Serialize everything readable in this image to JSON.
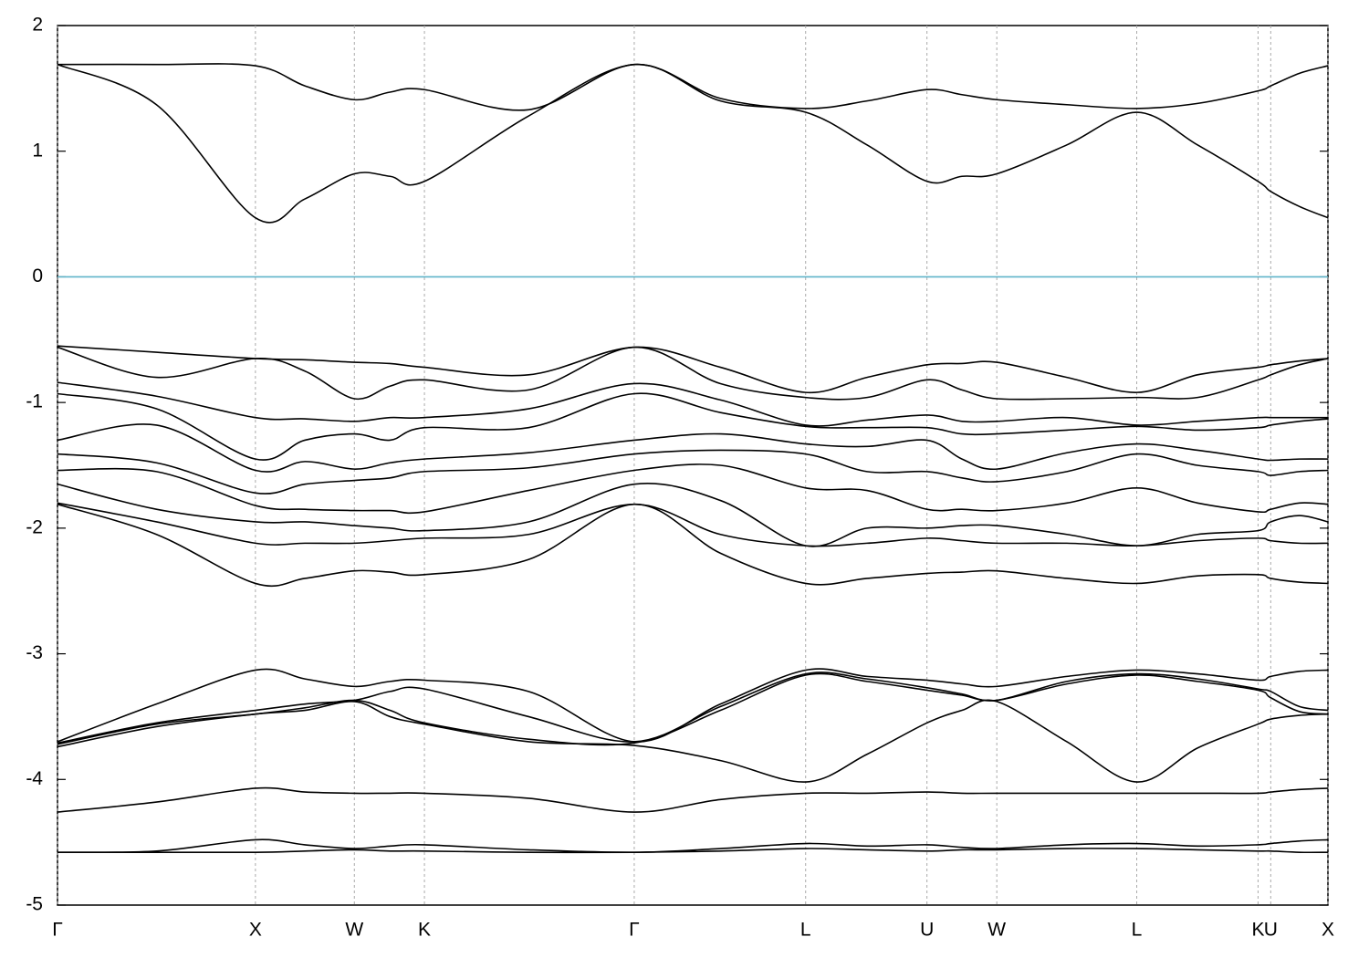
{
  "chart_data": {
    "type": "line",
    "x": [
      0,
      0.5,
      1,
      1.25,
      1.5,
      1.68,
      1.854,
      2.38,
      2.914,
      3.35,
      3.78,
      4.09,
      4.393,
      4.57,
      4.746,
      5.1,
      5.453,
      5.76,
      6.066,
      6.13,
      6.275,
      6.419
    ],
    "color": "#000000",
    "series": [
      {
        "values": [
          1.69,
          1.69,
          1.68,
          1.52,
          1.41,
          1.47,
          1.49,
          1.33,
          1.69,
          1.42,
          1.34,
          1.4,
          1.49,
          1.45,
          1.41,
          1.37,
          1.34,
          1.38,
          1.48,
          1.52,
          1.62,
          1.68
        ]
      },
      {
        "values": [
          1.69,
          1.37,
          0.47,
          0.62,
          0.82,
          0.8,
          0.76,
          1.28,
          1.69,
          1.4,
          1.31,
          1.05,
          0.76,
          0.8,
          0.82,
          1.05,
          1.31,
          1.05,
          0.76,
          0.68,
          0.56,
          0.47
        ]
      },
      {
        "values": [
          -0.55,
          -0.6,
          -0.65,
          -0.66,
          -0.68,
          -0.69,
          -0.72,
          -0.78,
          -0.56,
          -0.72,
          -0.92,
          -0.8,
          -0.7,
          -0.69,
          -0.68,
          -0.8,
          -0.92,
          -0.78,
          -0.72,
          -0.7,
          -0.67,
          -0.65
        ]
      },
      {
        "values": [
          -0.56,
          -0.8,
          -0.65,
          -0.75,
          -0.97,
          -0.87,
          -0.82,
          -0.9,
          -0.56,
          -0.85,
          -0.96,
          -0.96,
          -0.82,
          -0.9,
          -0.97,
          -0.97,
          -0.96,
          -0.96,
          -0.82,
          -0.78,
          -0.7,
          -0.65
        ]
      },
      {
        "values": [
          -0.84,
          -0.95,
          -1.12,
          -1.13,
          -1.15,
          -1.12,
          -1.12,
          -1.05,
          -0.85,
          -0.98,
          -1.18,
          -1.14,
          -1.1,
          -1.15,
          -1.15,
          -1.12,
          -1.18,
          -1.15,
          -1.12,
          -1.12,
          -1.12,
          -1.12
        ]
      },
      {
        "values": [
          -0.93,
          -1.05,
          -1.45,
          -1.3,
          -1.25,
          -1.3,
          -1.2,
          -1.2,
          -0.93,
          -1.08,
          -1.19,
          -1.2,
          -1.2,
          -1.25,
          -1.25,
          -1.22,
          -1.19,
          -1.22,
          -1.2,
          -1.18,
          -1.15,
          -1.13
        ]
      },
      {
        "values": [
          -1.3,
          -1.18,
          -1.54,
          -1.47,
          -1.53,
          -1.48,
          -1.45,
          -1.4,
          -1.3,
          -1.25,
          -1.33,
          -1.35,
          -1.3,
          -1.45,
          -1.53,
          -1.4,
          -1.33,
          -1.38,
          -1.45,
          -1.46,
          -1.45,
          -1.45
        ]
      },
      {
        "values": [
          -1.41,
          -1.48,
          -1.72,
          -1.65,
          -1.62,
          -1.6,
          -1.55,
          -1.52,
          -1.41,
          -1.38,
          -1.41,
          -1.55,
          -1.55,
          -1.6,
          -1.63,
          -1.55,
          -1.41,
          -1.5,
          -1.55,
          -1.58,
          -1.55,
          -1.54
        ]
      },
      {
        "values": [
          -1.54,
          -1.55,
          -1.82,
          -1.85,
          -1.86,
          -1.86,
          -1.87,
          -1.7,
          -1.54,
          -1.5,
          -1.68,
          -1.7,
          -1.85,
          -1.85,
          -1.86,
          -1.8,
          -1.68,
          -1.8,
          -1.87,
          -1.85,
          -1.8,
          -1.81
        ]
      },
      {
        "values": [
          -1.65,
          -1.85,
          -1.95,
          -1.95,
          -1.98,
          -2.0,
          -2.02,
          -1.95,
          -1.65,
          -1.78,
          -2.14,
          -2.0,
          -2.0,
          -1.98,
          -1.98,
          -2.05,
          -2.14,
          -2.05,
          -2.02,
          -1.95,
          -1.9,
          -1.95
        ]
      },
      {
        "values": [
          -1.8,
          -1.95,
          -2.12,
          -2.12,
          -2.12,
          -2.1,
          -2.08,
          -2.05,
          -1.81,
          -2.05,
          -2.14,
          -2.12,
          -2.08,
          -2.1,
          -2.12,
          -2.12,
          -2.14,
          -2.1,
          -2.08,
          -2.1,
          -2.12,
          -2.12
        ]
      },
      {
        "values": [
          -1.81,
          -2.05,
          -2.44,
          -2.4,
          -2.34,
          -2.35,
          -2.37,
          -2.25,
          -1.81,
          -2.2,
          -2.44,
          -2.4,
          -2.36,
          -2.35,
          -2.34,
          -2.4,
          -2.44,
          -2.38,
          -2.37,
          -2.4,
          -2.43,
          -2.44
        ]
      },
      {
        "values": [
          -3.7,
          -3.4,
          -3.13,
          -3.2,
          -3.26,
          -3.22,
          -3.21,
          -3.3,
          -3.7,
          -3.4,
          -3.13,
          -3.18,
          -3.21,
          -3.24,
          -3.26,
          -3.18,
          -3.13,
          -3.16,
          -3.21,
          -3.18,
          -3.14,
          -3.13
        ]
      },
      {
        "values": [
          -3.71,
          -3.55,
          -3.45,
          -3.4,
          -3.37,
          -3.3,
          -3.28,
          -3.5,
          -3.7,
          -3.42,
          -3.16,
          -3.2,
          -3.27,
          -3.32,
          -3.37,
          -3.22,
          -3.16,
          -3.2,
          -3.28,
          -3.3,
          -3.42,
          -3.45
        ]
      },
      {
        "values": [
          -3.72,
          -3.56,
          -3.48,
          -3.43,
          -3.37,
          -3.45,
          -3.55,
          -3.68,
          -3.71,
          -3.45,
          -3.17,
          -3.22,
          -3.29,
          -3.33,
          -3.37,
          -3.24,
          -3.17,
          -3.22,
          -3.29,
          -3.35,
          -3.46,
          -3.48
        ]
      },
      {
        "values": [
          -3.74,
          -3.58,
          -3.48,
          -3.45,
          -3.38,
          -3.5,
          -3.56,
          -3.7,
          -3.73,
          -3.85,
          -4.02,
          -3.8,
          -3.55,
          -3.45,
          -3.38,
          -3.7,
          -4.02,
          -3.75,
          -3.56,
          -3.52,
          -3.49,
          -3.48
        ]
      },
      {
        "values": [
          -4.26,
          -4.18,
          -4.07,
          -4.1,
          -4.11,
          -4.11,
          -4.11,
          -4.15,
          -4.26,
          -4.16,
          -4.11,
          -4.11,
          -4.1,
          -4.11,
          -4.11,
          -4.11,
          -4.11,
          -4.11,
          -4.11,
          -4.1,
          -4.08,
          -4.07
        ]
      },
      {
        "values": [
          -4.58,
          -4.57,
          -4.48,
          -4.52,
          -4.55,
          -4.53,
          -4.52,
          -4.56,
          -4.58,
          -4.55,
          -4.51,
          -4.53,
          -4.52,
          -4.54,
          -4.55,
          -4.52,
          -4.51,
          -4.53,
          -4.52,
          -4.51,
          -4.49,
          -4.48
        ]
      },
      {
        "values": [
          -4.58,
          -4.58,
          -4.58,
          -4.57,
          -4.56,
          -4.57,
          -4.57,
          -4.58,
          -4.58,
          -4.57,
          -4.55,
          -4.56,
          -4.57,
          -4.56,
          -4.56,
          -4.55,
          -4.55,
          -4.56,
          -4.57,
          -4.57,
          -4.58,
          -4.58
        ]
      }
    ],
    "xlim": [
      0,
      6.419
    ],
    "xticks": [
      {
        "value": 0,
        "label": "Γ"
      },
      {
        "value": 1,
        "label": "X"
      },
      {
        "value": 1.5,
        "label": "W"
      },
      {
        "value": 1.854,
        "label": "K"
      },
      {
        "value": 2.914,
        "label": "Γ"
      },
      {
        "value": 3.78,
        "label": "L"
      },
      {
        "value": 4.393,
        "label": "U"
      },
      {
        "value": 4.746,
        "label": "W"
      },
      {
        "value": 5.453,
        "label": "L"
      },
      {
        "value": 6.066,
        "label": "K"
      },
      {
        "value": 6.13,
        "label": "U"
      },
      {
        "value": 6.419,
        "label": "X"
      }
    ],
    "ylim": [
      -5,
      2
    ],
    "yticks": [
      2,
      1,
      0,
      -1,
      -2,
      -3,
      -4,
      -5
    ],
    "xgrid": true,
    "reference_line": {
      "value": 0,
      "color": "#5fb4c9"
    }
  }
}
